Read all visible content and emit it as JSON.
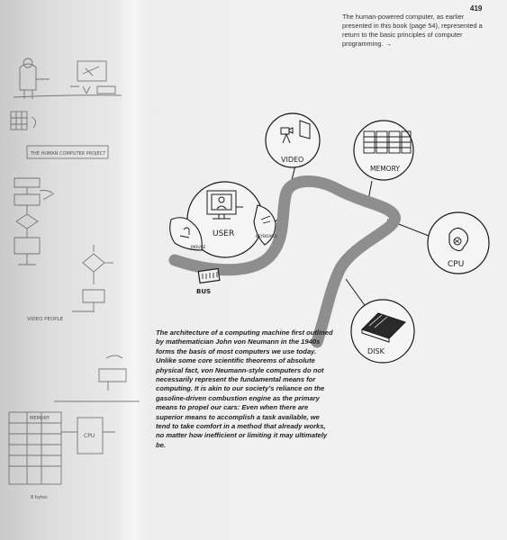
{
  "page_number": "419",
  "caption": "The human-powered computer, as earlier presented in this book (page 54), represented a return to the basic principles of computer programming. →",
  "body_text": "The architecture of a computing machine first outlined by mathematician John von Neumann in the 1940s forms the basis of most computers we use today. Unlike some core scientific theorems of absolute physical fact, von Neumann-style computers do not necessarily represent the fundamental means for computing. It is akin to our society’s reliance on the gasoline-driven combustion engine as the primary means to propel our cars: Even when there are superior means to accomplish a task available, we tend to take comfort in a method that already works, no matter how inefficient or limiting it may ultimately be.",
  "diagram": {
    "user_label": "USER",
    "video_label": "VIDEO",
    "memory_label": "MEMORY",
    "cpu_label": "CPU",
    "disk_label": "DISK",
    "bus_label": "BUS",
    "mouse_label": "MOUSE",
    "keyboard_label": "KEYBOARD"
  },
  "sketches": {
    "human_computer_label": "THE HUMAN COMPUTER PROJECT",
    "video_people_label": "VIDEO PEOPLE",
    "cpu_label": "CPU",
    "memory_label": "MEMORY",
    "size_label": "8 bytes"
  }
}
